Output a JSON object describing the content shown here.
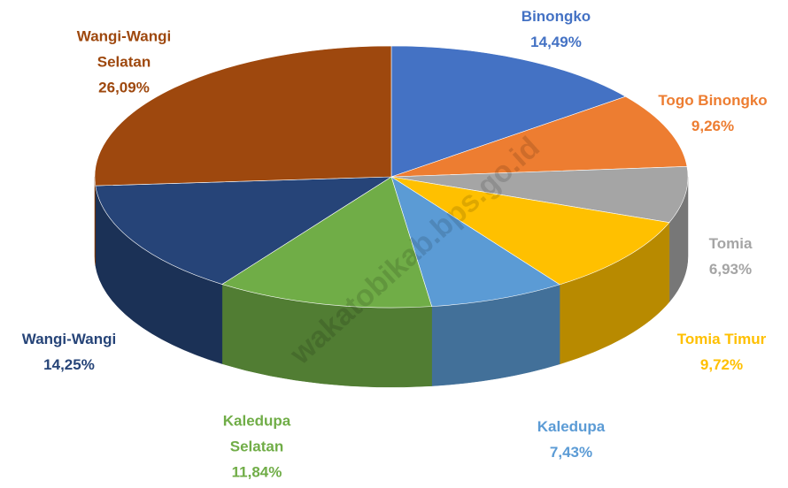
{
  "chart_data": {
    "type": "pie",
    "categories": [
      "Binongko",
      "Togo Binongko",
      "Tomia",
      "Tomia Timur",
      "Kaledupa",
      "Kaledupa Selatan",
      "Wangi-Wangi",
      "Wangi-Wangi Selatan"
    ],
    "values": [
      14.49,
      9.26,
      6.93,
      9.72,
      7.43,
      11.84,
      14.25,
      26.09
    ],
    "value_labels": [
      "14,49%",
      "9,26%",
      "6,93%",
      "9,72%",
      "7,43%",
      "11,84%",
      "14,25%",
      "26,09%"
    ],
    "colors": [
      "#4472c4",
      "#ed7d31",
      "#a5a5a5",
      "#ffc000",
      "#5b9bd5",
      "#70ad47",
      "#264478",
      "#9e480e"
    ],
    "watermark": "wakatobikab.bps.go.id"
  }
}
